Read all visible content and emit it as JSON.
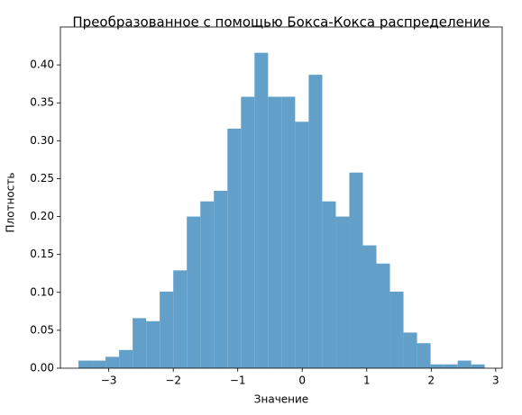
{
  "chart_data": {
    "type": "histogram",
    "title": "Преобразованное с помощью Бокса-Кокса распределение",
    "x_label": "Значение",
    "y_label": "Плотность",
    "bins": [
      -3.47,
      -3.26,
      -3.05,
      -2.84,
      -2.63,
      -2.42,
      -2.21,
      -2.0,
      -1.79,
      -1.58,
      -1.37,
      -1.16,
      -0.95,
      -0.74,
      -0.53,
      -0.32,
      -0.11,
      0.1,
      0.31,
      0.52,
      0.73,
      0.94,
      1.15,
      1.36,
      1.57,
      1.78,
      1.99,
      2.2,
      2.41,
      2.62,
      2.83
    ],
    "counts": [
      0.01,
      0.01,
      0.015,
      0.024,
      0.066,
      0.062,
      0.101,
      0.129,
      0.2,
      0.22,
      0.234,
      0.316,
      0.358,
      0.416,
      0.358,
      0.358,
      0.325,
      0.387,
      0.22,
      0.2,
      0.258,
      0.162,
      0.138,
      0.101,
      0.047,
      0.033,
      0.005,
      0.005,
      0.01,
      0.005
    ],
    "color": "#62a0ca",
    "xlim": [
      -3.75,
      3.1
    ],
    "ylim": [
      0,
      0.45
    ],
    "xticks": [
      {
        "value": -3,
        "label": "−3"
      },
      {
        "value": -2,
        "label": "−2"
      },
      {
        "value": -1,
        "label": "−1"
      },
      0,
      1,
      2,
      3
    ],
    "yticks": [
      {
        "value": 0,
        "label": "0.00"
      },
      {
        "value": 0.05,
        "label": "0.05"
      },
      {
        "value": 0.1,
        "label": "0.10"
      },
      {
        "value": 0.15,
        "label": "0.15"
      },
      {
        "value": 0.2,
        "label": "0.20"
      },
      {
        "value": 0.25,
        "label": "0.25"
      },
      {
        "value": 0.3,
        "label": "0.30"
      },
      {
        "value": 0.35,
        "label": "0.35"
      },
      {
        "value": 0.4,
        "label": "0.40"
      }
    ]
  }
}
